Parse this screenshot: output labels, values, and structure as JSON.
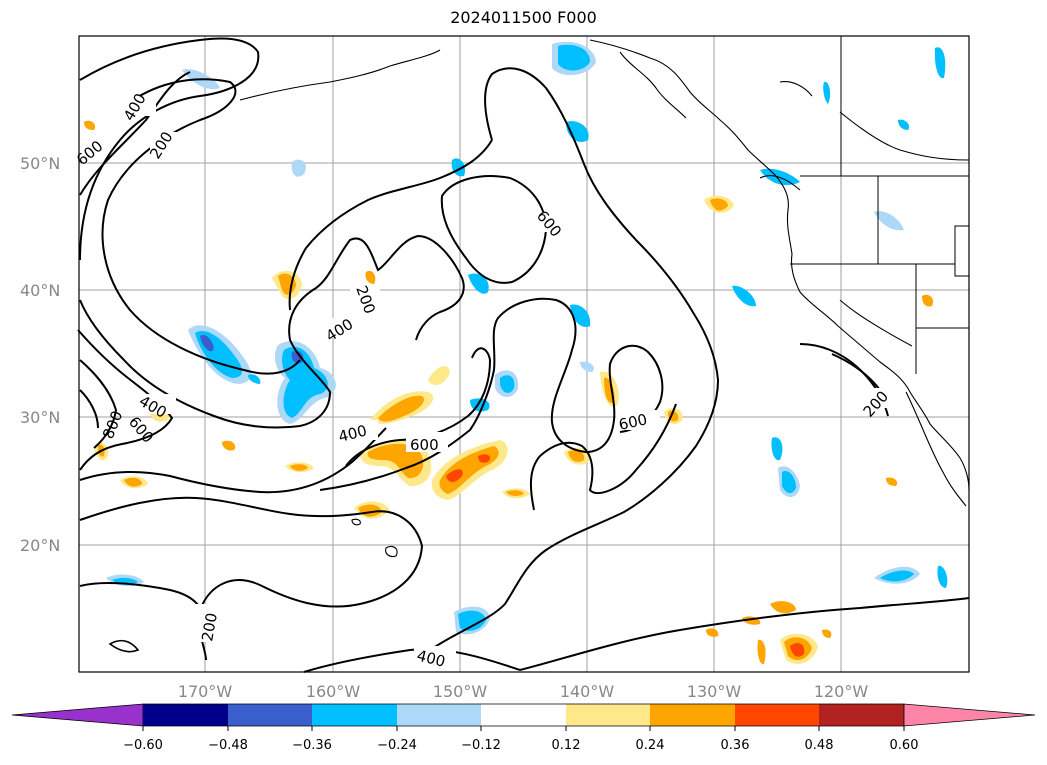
{
  "title": "2024011500 F000",
  "lat_labels": [
    "50°N",
    "40°N",
    "30°N",
    "20°N"
  ],
  "lon_labels": [
    "170°W",
    "160°W",
    "150°W",
    "140°W",
    "130°W",
    "120°W"
  ],
  "contour_labels": [
    "400",
    "200",
    "600",
    "200",
    "400",
    "600",
    "400",
    "800",
    "400",
    "600",
    "600",
    "600",
    "200",
    "200",
    "400"
  ],
  "colorbar": {
    "ticks": [
      "−0.60",
      "−0.48",
      "−0.36",
      "−0.24",
      "−0.12",
      "0.12",
      "0.24",
      "0.36",
      "0.48",
      "0.60"
    ],
    "colors": [
      "#9932cc",
      "#00008b",
      "#3a5fcd",
      "#00bfff",
      "#add8f7",
      "#ffffff",
      "#ffe88a",
      "#ffa500",
      "#ff4500",
      "#b22222",
      "#ff85a8"
    ]
  }
}
